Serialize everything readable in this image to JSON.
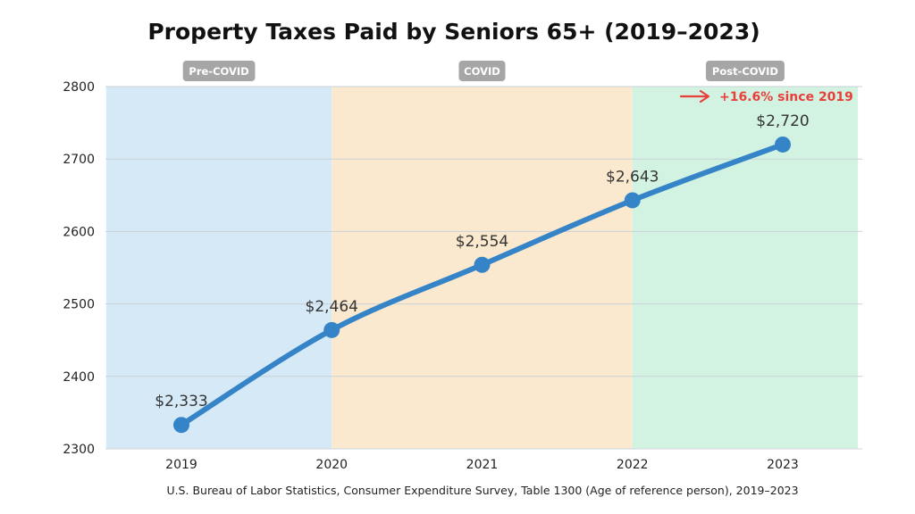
{
  "chart_data": {
    "type": "line",
    "title": "Property Taxes Paid by Seniors 65+ (2019–2023)",
    "x": [
      "2019",
      "2020",
      "2021",
      "2022",
      "2023"
    ],
    "values": [
      2333,
      2464,
      2554,
      2643,
      2720
    ],
    "data_labels": [
      "$2,333",
      "$2,464",
      "$2,554",
      "$2,643",
      "$2,720"
    ],
    "y_ticks": [
      "2300",
      "2400",
      "2500",
      "2600",
      "2700",
      "2800"
    ],
    "ylim": [
      2300,
      2800
    ],
    "xlabel": "",
    "ylabel": "",
    "grid": true,
    "line_color": "#3584c8",
    "periods": [
      {
        "label": "Pre-COVID",
        "from": 2018.5,
        "to": 2020,
        "color": "#d6e9f7"
      },
      {
        "label": "COVID",
        "from": 2020,
        "to": 2022,
        "color": "#fbe9cf"
      },
      {
        "label": "Post-COVID",
        "from": 2022,
        "to": 2023.5,
        "color": "#d3f3e2"
      }
    ],
    "annotation": {
      "text": "+16.6% since 2019",
      "color": "#e8403a"
    },
    "source": "U.S. Bureau of Labor Statistics, Consumer Expenditure Survey, Table 1300 (Age of reference person), 2019–2023"
  }
}
